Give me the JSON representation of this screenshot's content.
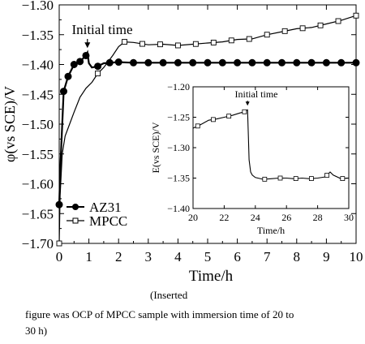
{
  "chart_data": [
    {
      "type": "line",
      "xlabel": "Time/h",
      "ylabel": "φ(vs SCE)/V",
      "xlim": [
        0,
        10
      ],
      "ylim": [
        -1.7,
        -1.3
      ],
      "xticks": [
        "0",
        "1",
        "2",
        "3",
        "4",
        "5",
        "6",
        "7",
        "8",
        "9",
        "10"
      ],
      "yticks": [
        "-1.30",
        "-1.35",
        "-1.40",
        "-1.45",
        "-1.50",
        "-1.55",
        "-1.60",
        "-1.65",
        "-1.70"
      ],
      "grid": false,
      "legend_position": "bottom-left",
      "annotation": {
        "text": "Initial time",
        "x": 0.95,
        "y": -1.382
      },
      "series": [
        {
          "name": "AZ31",
          "marker": "filled-circle",
          "color": "#000000",
          "x": [
            0,
            0.05,
            0.15,
            0.3,
            0.5,
            0.7,
            0.8,
            0.9,
            0.95,
            1.0,
            1.1,
            1.3,
            1.5,
            1.7,
            2.0,
            2.5,
            3.0,
            3.5,
            4.0,
            4.5,
            5.0,
            5.5,
            6.0,
            6.5,
            7.0,
            7.5,
            8.0,
            8.5,
            9.0,
            9.5,
            10.0
          ],
          "y": [
            -1.635,
            -1.56,
            -1.445,
            -1.42,
            -1.4,
            -1.395,
            -1.39,
            -1.385,
            -1.38,
            -1.398,
            -1.405,
            -1.403,
            -1.398,
            -1.397,
            -1.396,
            -1.397,
            -1.397,
            -1.397,
            -1.397,
            -1.397,
            -1.397,
            -1.397,
            -1.397,
            -1.397,
            -1.397,
            -1.397,
            -1.397,
            -1.397,
            -1.397,
            -1.397,
            -1.397
          ],
          "marked_x": [
            0,
            0.15,
            0.3,
            0.5,
            0.7,
            0.9,
            1.3,
            1.7,
            2.0,
            2.5,
            3.0,
            3.5,
            4.0,
            4.5,
            5.0,
            5.5,
            6.0,
            6.5,
            7.0,
            7.5,
            8.0,
            8.5,
            9.0,
            9.5,
            10.0
          ]
        },
        {
          "name": "MPCC",
          "marker": "open-square",
          "color": "#000000",
          "x": [
            0,
            0.03,
            0.1,
            0.2,
            0.35,
            0.5,
            0.7,
            0.9,
            1.1,
            1.3,
            1.5,
            1.8,
            2.0,
            2.2,
            2.5,
            3.0,
            3.5,
            4.0,
            4.5,
            5.0,
            5.5,
            6.0,
            6.5,
            7.0,
            7.5,
            8.0,
            8.5,
            9.0,
            9.5,
            10.0
          ],
          "y": [
            -1.7,
            -1.62,
            -1.55,
            -1.52,
            -1.5,
            -1.48,
            -1.455,
            -1.44,
            -1.43,
            -1.415,
            -1.405,
            -1.385,
            -1.37,
            -1.362,
            -1.363,
            -1.367,
            -1.366,
            -1.368,
            -1.366,
            -1.364,
            -1.362,
            -1.358,
            -1.357,
            -1.35,
            -1.345,
            -1.34,
            -1.338,
            -1.332,
            -1.326,
            -1.318
          ],
          "marked_x": [
            0,
            1.3,
            2.2,
            2.8,
            3.4,
            4.0,
            4.6,
            5.2,
            5.8,
            6.4,
            7.0,
            7.6,
            8.2,
            8.8,
            9.4,
            10.0
          ]
        }
      ]
    },
    {
      "type": "line",
      "inset": true,
      "xlabel": "Time/h",
      "ylabel": "E(vs SCE)/V",
      "xlim": [
        20,
        30
      ],
      "ylim": [
        -1.4,
        -1.2
      ],
      "xticks": [
        "20",
        "22",
        "24",
        "26",
        "28",
        "30"
      ],
      "yticks": [
        "-1.20",
        "-1.25",
        "-1.30",
        "-1.35",
        "-1.40"
      ],
      "annotation": {
        "text": "Initial time",
        "x": 23.5,
        "y": -1.235
      },
      "series": [
        {
          "marker": "open-square",
          "color": "#000000",
          "x": [
            20,
            20.5,
            21,
            21.5,
            22,
            22.5,
            23,
            23.3,
            23.5,
            23.55,
            23.6,
            23.7,
            23.8,
            24,
            24.5,
            25,
            25.5,
            26,
            26.5,
            27,
            27.5,
            28,
            28.5,
            28.8,
            29,
            29.5,
            30
          ],
          "y": [
            -1.268,
            -1.262,
            -1.255,
            -1.253,
            -1.25,
            -1.247,
            -1.243,
            -1.241,
            -1.238,
            -1.28,
            -1.32,
            -1.34,
            -1.345,
            -1.349,
            -1.352,
            -1.351,
            -1.35,
            -1.35,
            -1.351,
            -1.35,
            -1.351,
            -1.35,
            -1.348,
            -1.34,
            -1.345,
            -1.351,
            -1.35
          ],
          "marked_x": [
            20.3,
            21.3,
            22.3,
            23.3,
            24.6,
            25.6,
            26.6,
            27.6,
            28.6,
            29.6
          ]
        }
      ]
    }
  ],
  "caption": {
    "line1": "(Inserted",
    "line2": "figure was OCP of MPCC sample with immersion time of 20 to",
    "line3": "30 h)"
  }
}
